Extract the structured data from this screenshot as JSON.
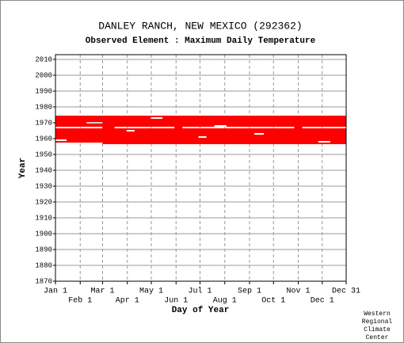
{
  "chart_data": {
    "type": "availability",
    "title": "DANLEY RANCH, NEW MEXICO   (292362)",
    "subtitle": "Observed Element : Maximum Daily Temperature",
    "ylabel": "Year",
    "xlabel": "Day of Year",
    "credit": [
      "Western",
      "Regional",
      "Climate",
      "Center"
    ],
    "color": "#ff0000",
    "grid": true,
    "xlim": [
      1,
      365
    ],
    "ylim": [
      1870,
      2013
    ],
    "xticks": [
      {
        "value": 1,
        "label": "Jan 1"
      },
      {
        "value": 32,
        "label": "Feb 1"
      },
      {
        "value": 60,
        "label": "Mar 1"
      },
      {
        "value": 91,
        "label": "Apr 1"
      },
      {
        "value": 121,
        "label": "May 1"
      },
      {
        "value": 152,
        "label": "Jun 1"
      },
      {
        "value": 182,
        "label": "Jul 1"
      },
      {
        "value": 213,
        "label": "Aug 1"
      },
      {
        "value": 244,
        "label": "Sep 1"
      },
      {
        "value": 274,
        "label": "Oct 1"
      },
      {
        "value": 305,
        "label": "Nov 1"
      },
      {
        "value": 335,
        "label": "Dec 1"
      },
      {
        "value": 365,
        "label": "Dec 31"
      }
    ],
    "yticks": [
      1870,
      1880,
      1890,
      1900,
      1910,
      1920,
      1930,
      1940,
      1950,
      1960,
      1970,
      1980,
      1990,
      2000,
      2010
    ],
    "years": [
      1974,
      1973,
      1972,
      1971,
      1970,
      1969,
      1968,
      1967,
      1966,
      1965,
      1964,
      1963,
      1962,
      1961,
      1960,
      1959,
      1958,
      1957
    ],
    "ranges": [
      [
        [
          1,
          365
        ]
      ],
      [
        [
          1,
          120
        ],
        [
          135,
          365
        ]
      ],
      [
        [
          1,
          365
        ]
      ],
      [
        [
          1,
          365
        ]
      ],
      [
        [
          1,
          40
        ],
        [
          60,
          365
        ]
      ],
      [
        [
          1,
          365
        ]
      ],
      [
        [
          1,
          200
        ],
        [
          215,
          365
        ]
      ],
      [
        [
          60,
          75
        ],
        [
          150,
          160
        ],
        [
          300,
          310
        ]
      ],
      [
        [
          1,
          365
        ]
      ],
      [
        [
          1,
          90
        ],
        [
          100,
          365
        ]
      ],
      [
        [
          1,
          365
        ]
      ],
      [
        [
          1,
          250
        ],
        [
          262,
          365
        ]
      ],
      [
        [
          1,
          365
        ]
      ],
      [
        [
          1,
          180
        ],
        [
          190,
          365
        ]
      ],
      [
        [
          1,
          365
        ]
      ],
      [
        [
          15,
          365
        ]
      ],
      [
        [
          1,
          330
        ],
        [
          345,
          365
        ]
      ],
      [
        [
          60,
          365
        ]
      ]
    ]
  }
}
